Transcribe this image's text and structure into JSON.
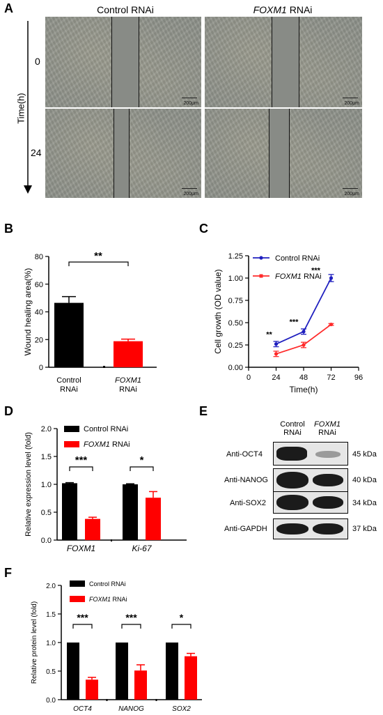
{
  "panelA": {
    "letter": "A",
    "col1": "Control RNAi",
    "col2_italic": "FOXM1",
    "col2_rest": " RNAi",
    "time_axis": "Time(h)",
    "row1": "0",
    "row2": "24",
    "scale_label": "200μm"
  },
  "panelB": {
    "letter": "B",
    "ylabel": "Wound healing area(%)",
    "significance": "**",
    "yticks": [
      "0",
      "20",
      "40",
      "60",
      "80"
    ],
    "cat1_line1": "Control",
    "cat1_line2": "RNAi",
    "cat2_line1": "FOXM1",
    "cat2_line2": "RNAi"
  },
  "panelC": {
    "letter": "C",
    "ylabel": "Cell growth (OD value)",
    "xlabel": "Time(h)",
    "legend1": "Control RNAi",
    "legend2_italic": "FOXM1",
    "legend2_rest": " RNAi",
    "yticks": [
      "0.00",
      "0.25",
      "0.50",
      "0.75",
      "1.00",
      "1.25"
    ],
    "xticks": [
      "0",
      "24",
      "48",
      "72",
      "96"
    ],
    "stars": [
      "**",
      "***",
      "***"
    ]
  },
  "panelD": {
    "letter": "D",
    "ylabel": "Relative expression level (fold)",
    "legend1": "Control RNAi",
    "legend2_italic": "FOXM1",
    "legend2_rest": " RNAi",
    "yticks": [
      "0.0",
      "0.5",
      "1.0",
      "1.5",
      "2.0"
    ],
    "categories": [
      "FOXM1",
      "Ki-67"
    ],
    "stars": [
      "***",
      "*"
    ]
  },
  "panelE": {
    "letter": "E",
    "col1_line1": "Control",
    "col1_line2": "RNAi",
    "col2_line1": "FOXM1",
    "col2_line2": "RNAi",
    "rows": [
      {
        "label": "Anti-OCT4",
        "kda": "45 kDa"
      },
      {
        "label": "Anti-NANOG",
        "kda": "40 kDa"
      },
      {
        "label": "Anti-SOX2",
        "kda": "34 kDa"
      },
      {
        "label": "Anti-GAPDH",
        "kda": "37 kDa"
      }
    ]
  },
  "panelF": {
    "letter": "F",
    "ylabel": "Relative protein level (fold)",
    "legend1": "Control RNAi",
    "legend2_italic": "FOXM1",
    "legend2_rest": " RNAi",
    "yticks": [
      "0.0",
      "0.5",
      "1.0",
      "1.5",
      "2.0"
    ],
    "categories": [
      "OCT4",
      "NANOG",
      "SOX2"
    ],
    "stars": [
      "***",
      "***",
      "*"
    ]
  },
  "colors": {
    "control": "#000000",
    "foxm1": "#ff0000",
    "control_line": "#1f1fbf",
    "foxm1_line": "#ff2a2a"
  },
  "chart_data": [
    {
      "type": "bar",
      "panel": "B",
      "categories": [
        "Control RNAi",
        "FOXM1 RNAi"
      ],
      "values": [
        46.5,
        18.8
      ],
      "errors": [
        4.5,
        1.5
      ],
      "ylabel": "Wound healing area(%)",
      "ylim": [
        0,
        80
      ]
    },
    {
      "type": "line",
      "panel": "C",
      "x": [
        24,
        48,
        72
      ],
      "series": [
        {
          "name": "Control RNAi",
          "values": [
            0.26,
            0.4,
            1.0
          ],
          "errors": [
            0.03,
            0.03,
            0.04
          ]
        },
        {
          "name": "FOXM1 RNAi",
          "values": [
            0.15,
            0.25,
            0.48
          ],
          "errors": [
            0.03,
            0.03,
            0.01
          ]
        }
      ],
      "xlabel": "Time(h)",
      "ylabel": "Cell growth (OD value)",
      "xlim": [
        0,
        96
      ],
      "ylim": [
        0,
        1.25
      ]
    },
    {
      "type": "bar",
      "panel": "D",
      "categories": [
        "FOXM1",
        "Ki-67"
      ],
      "series": [
        {
          "name": "Control RNAi",
          "values": [
            1.02,
            1.0
          ],
          "errors": [
            0.01,
            0.01
          ]
        },
        {
          "name": "FOXM1 RNAi",
          "values": [
            0.38,
            0.76
          ],
          "errors": [
            0.03,
            0.11
          ]
        }
      ],
      "ylabel": "Relative expression level (fold)",
      "ylim": [
        0,
        2.0
      ]
    },
    {
      "type": "bar",
      "panel": "F",
      "categories": [
        "OCT4",
        "NANOG",
        "SOX2"
      ],
      "series": [
        {
          "name": "Control RNAi",
          "values": [
            1.0,
            1.0,
            1.0
          ],
          "errors": [
            0,
            0,
            0
          ]
        },
        {
          "name": "FOXM1 RNAi",
          "values": [
            0.35,
            0.51,
            0.76
          ],
          "errors": [
            0.04,
            0.1,
            0.05
          ]
        }
      ],
      "ylabel": "Relative protein level (fold)",
      "ylim": [
        0,
        2.0
      ]
    }
  ]
}
